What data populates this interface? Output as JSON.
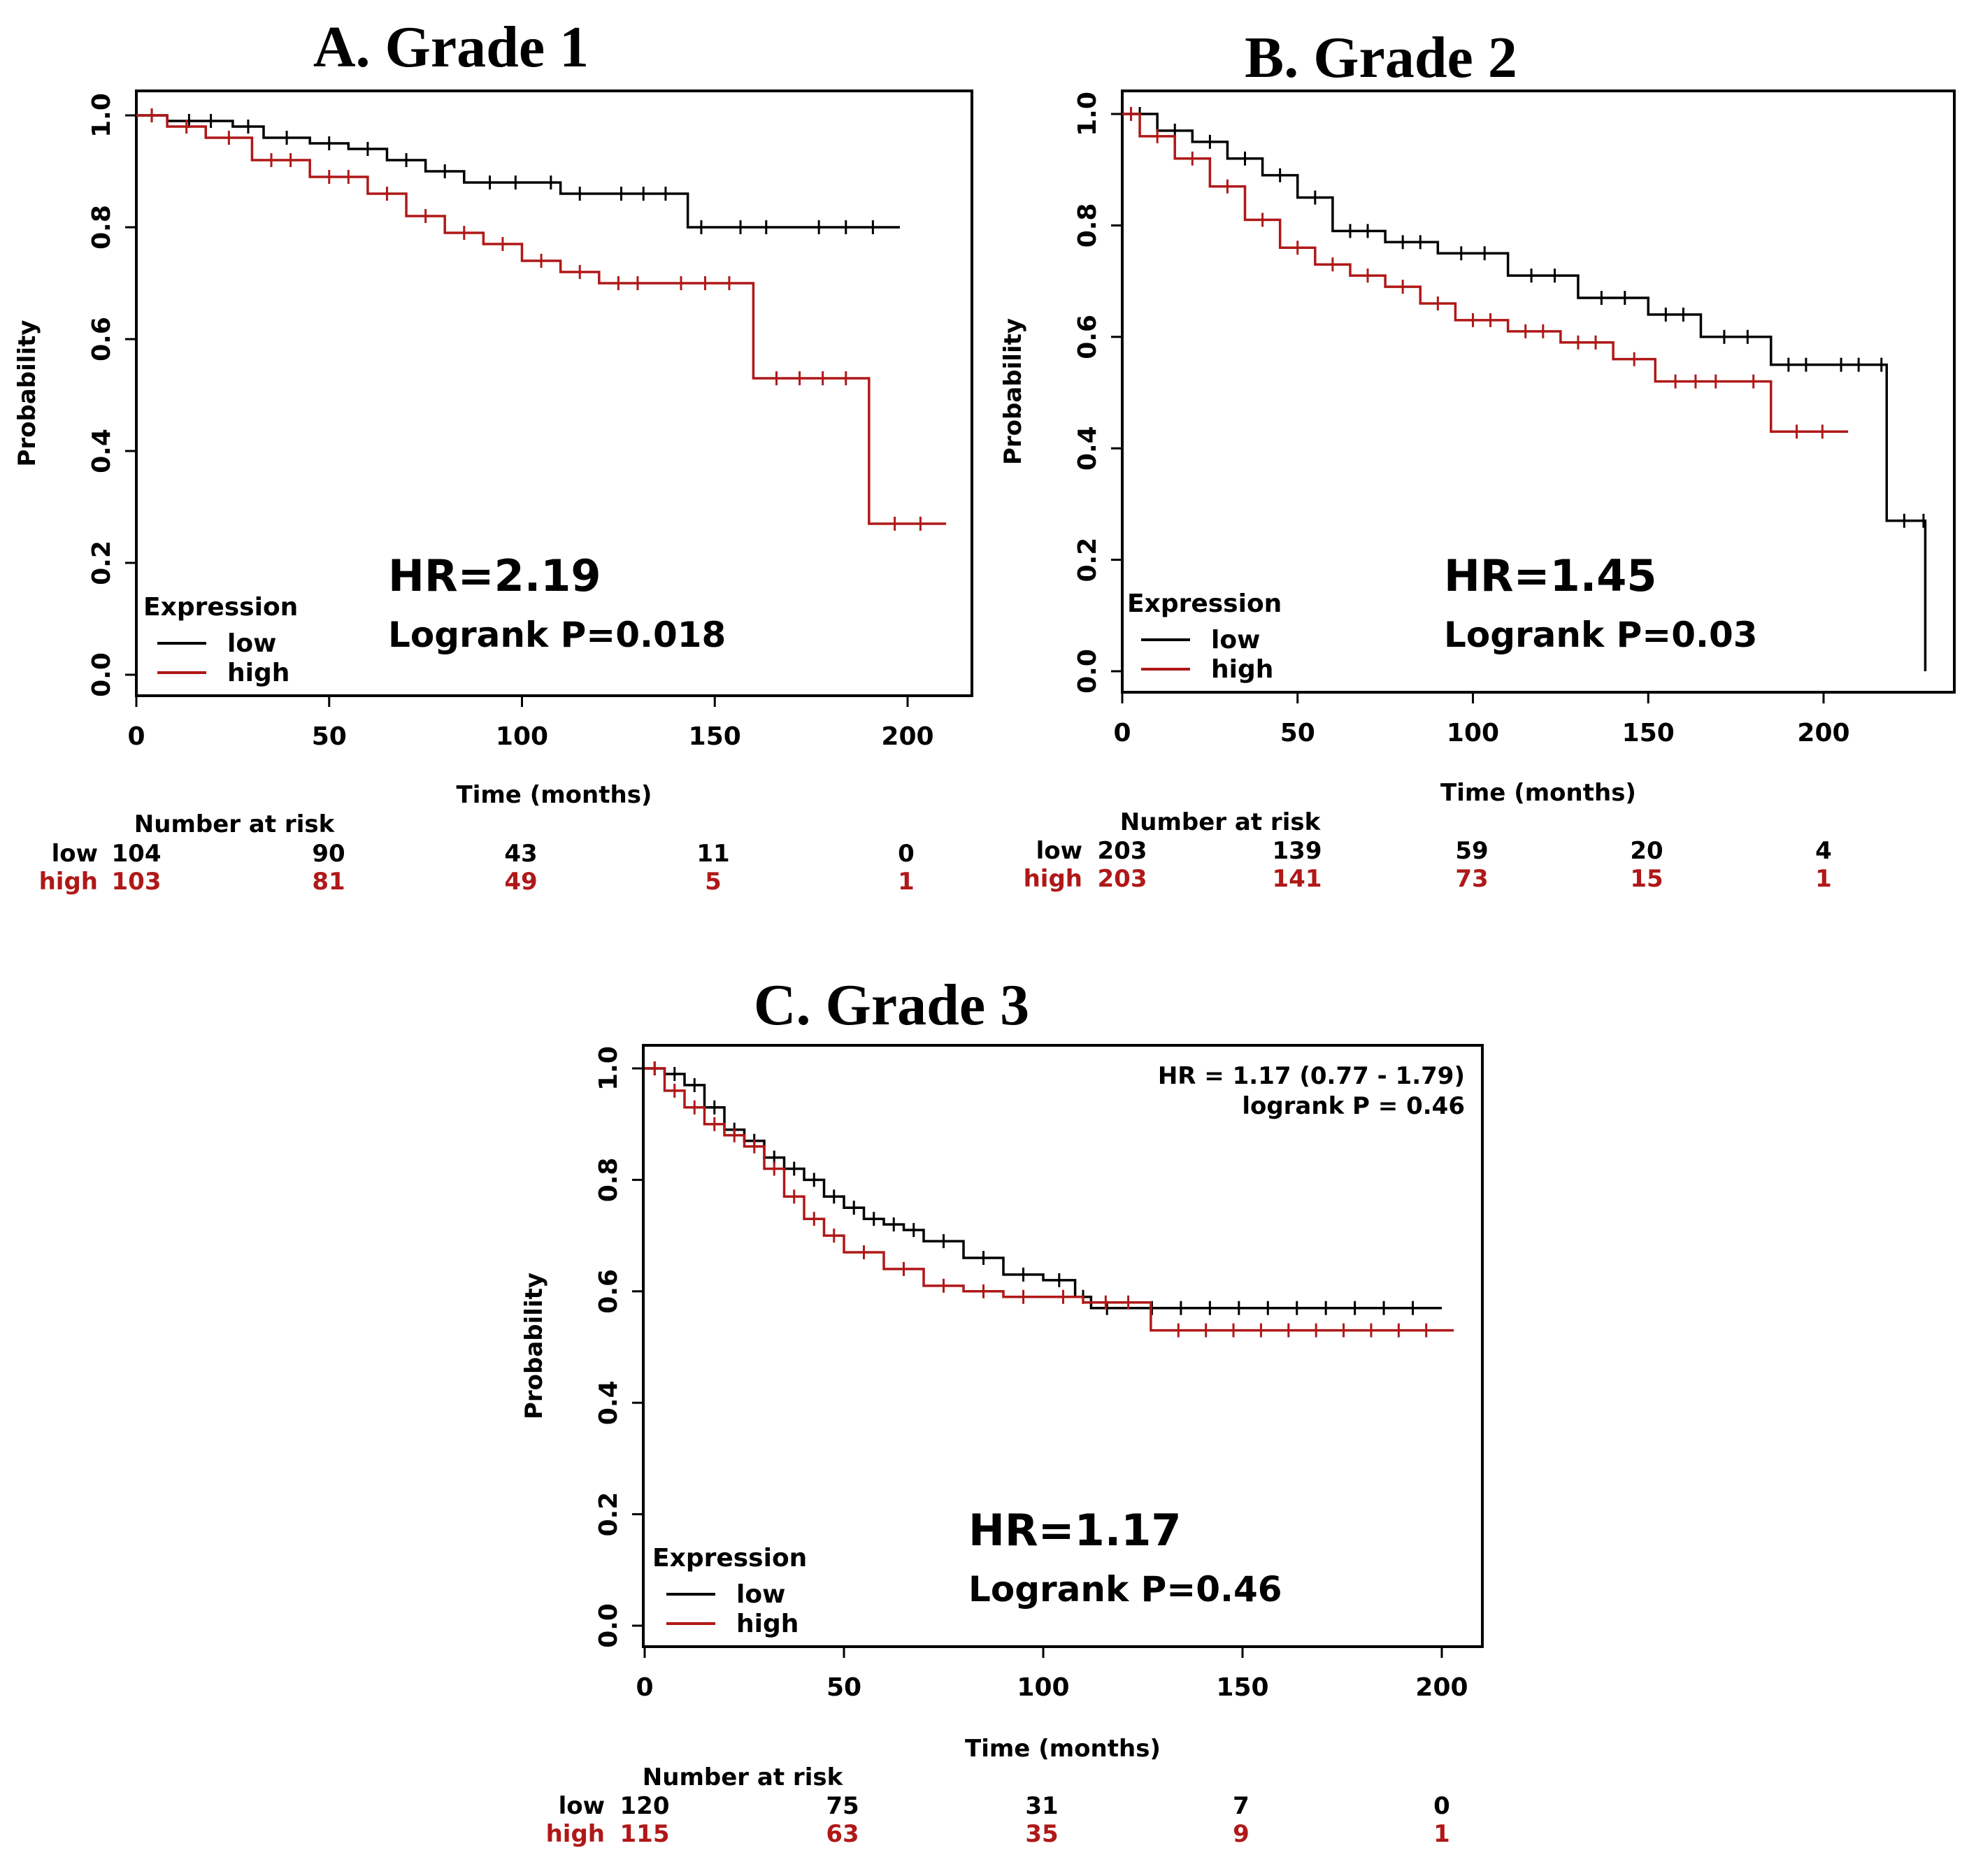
{
  "colors": {
    "low": "#000000",
    "high": "#b01818"
  },
  "chart_data": [
    {
      "type": "line",
      "title": "A.  Grade 1",
      "xlabel": "Time (months)",
      "ylabel": "Probability",
      "xlim": [
        0,
        210
      ],
      "ylim": [
        0,
        1
      ],
      "xticks": [
        "0",
        "50",
        "100",
        "150",
        "200"
      ],
      "yticks": [
        "0.0",
        "0.2",
        "0.4",
        "0.6",
        "0.8",
        "1.0"
      ],
      "hr_text": "HR=2.19",
      "p_text": "Logrank P=0.018",
      "legend_title": "Expression",
      "legend": [
        "low",
        "high"
      ],
      "series": [
        {
          "name": "low",
          "x": [
            0,
            8,
            25,
            33,
            45,
            55,
            65,
            75,
            85,
            105,
            110,
            120,
            143,
            150,
            170,
            198
          ],
          "y": [
            1.0,
            0.99,
            0.98,
            0.96,
            0.95,
            0.94,
            0.92,
            0.9,
            0.88,
            0.88,
            0.86,
            0.86,
            0.8,
            0.8,
            0.8,
            0.8
          ]
        },
        {
          "name": "high",
          "x": [
            0,
            8,
            18,
            30,
            45,
            60,
            70,
            80,
            90,
            100,
            110,
            120,
            135,
            160,
            190,
            210
          ],
          "y": [
            1.0,
            0.98,
            0.96,
            0.92,
            0.89,
            0.86,
            0.82,
            0.79,
            0.77,
            0.74,
            0.72,
            0.7,
            0.7,
            0.53,
            0.27,
            0.27
          ]
        }
      ],
      "risk_header": "Number at risk",
      "risk_low_label": "low",
      "risk_high_label": "high",
      "risk_low": [
        "104",
        "90",
        "43",
        "11",
        "0"
      ],
      "risk_high": [
        "103",
        "81",
        "49",
        "5",
        "1"
      ]
    },
    {
      "type": "line",
      "title": "B. Grade 2",
      "xlabel": "Time (months)",
      "ylabel": "Probability",
      "xlim": [
        0,
        238
      ],
      "ylim": [
        0,
        1
      ],
      "xticks": [
        "0",
        "50",
        "100",
        "150",
        "200"
      ],
      "yticks": [
        "0.0",
        "0.2",
        "0.4",
        "0.6",
        "0.8",
        "1.0"
      ],
      "hr_text": "HR=1.45",
      "p_text": "Logrank P=0.03",
      "legend_title": "Expression",
      "legend": [
        "low",
        "high"
      ],
      "series": [
        {
          "name": "low",
          "x": [
            0,
            10,
            20,
            30,
            40,
            50,
            60,
            75,
            90,
            110,
            130,
            150,
            165,
            185,
            200,
            215,
            218,
            228,
            229
          ],
          "y": [
            1.0,
            0.97,
            0.95,
            0.92,
            0.89,
            0.85,
            0.79,
            0.77,
            0.75,
            0.71,
            0.67,
            0.64,
            0.6,
            0.55,
            0.55,
            0.55,
            0.27,
            0.27,
            0.0
          ]
        },
        {
          "name": "high",
          "x": [
            0,
            5,
            15,
            25,
            35,
            45,
            55,
            65,
            75,
            85,
            95,
            110,
            125,
            140,
            152,
            175,
            185,
            207
          ],
          "y": [
            1.0,
            0.96,
            0.92,
            0.87,
            0.81,
            0.76,
            0.73,
            0.71,
            0.69,
            0.66,
            0.63,
            0.61,
            0.59,
            0.56,
            0.52,
            0.52,
            0.43,
            0.43
          ]
        }
      ],
      "risk_header": "Number at risk",
      "risk_low_label": "low",
      "risk_high_label": "high",
      "risk_low": [
        "203",
        "139",
        "59",
        "20",
        "4"
      ],
      "risk_high": [
        "203",
        "141",
        "73",
        "15",
        "1"
      ]
    },
    {
      "type": "line",
      "title": "C. Grade 3",
      "xlabel": "Time (months)",
      "ylabel": "Probability",
      "xlim": [
        0,
        210
      ],
      "ylim": [
        0,
        1
      ],
      "xticks": [
        "0",
        "50",
        "100",
        "150",
        "200"
      ],
      "yticks": [
        "0.0",
        "0.2",
        "0.4",
        "0.6",
        "0.8",
        "1.0"
      ],
      "annotation_hr": "HR = 1.17 (0.77 - 1.79)",
      "annotation_p": "logrank P = 0.46",
      "hr_text": "HR=1.17",
      "p_text": "Logrank P=0.46",
      "legend_title": "Expression",
      "legend": [
        "low",
        "high"
      ],
      "series": [
        {
          "name": "low",
          "x": [
            0,
            5,
            10,
            15,
            20,
            25,
            30,
            35,
            40,
            45,
            50,
            55,
            60,
            65,
            70,
            80,
            90,
            100,
            108,
            112,
            120,
            200
          ],
          "y": [
            1.0,
            0.99,
            0.97,
            0.93,
            0.89,
            0.87,
            0.84,
            0.82,
            0.8,
            0.77,
            0.75,
            0.73,
            0.72,
            0.71,
            0.69,
            0.66,
            0.63,
            0.62,
            0.59,
            0.57,
            0.57,
            0.57
          ]
        },
        {
          "name": "high",
          "x": [
            0,
            5,
            10,
            15,
            20,
            25,
            30,
            35,
            40,
            45,
            50,
            60,
            70,
            80,
            90,
            100,
            110,
            127,
            203
          ],
          "y": [
            1.0,
            0.96,
            0.93,
            0.9,
            0.88,
            0.86,
            0.82,
            0.77,
            0.73,
            0.7,
            0.67,
            0.64,
            0.61,
            0.6,
            0.59,
            0.59,
            0.58,
            0.53,
            0.53
          ]
        }
      ],
      "risk_header": "Number at risk",
      "risk_low_label": "low",
      "risk_high_label": "high",
      "risk_low": [
        "120",
        "75",
        "31",
        "7",
        "0"
      ],
      "risk_high": [
        "115",
        "63",
        "35",
        "9",
        "1"
      ]
    }
  ]
}
